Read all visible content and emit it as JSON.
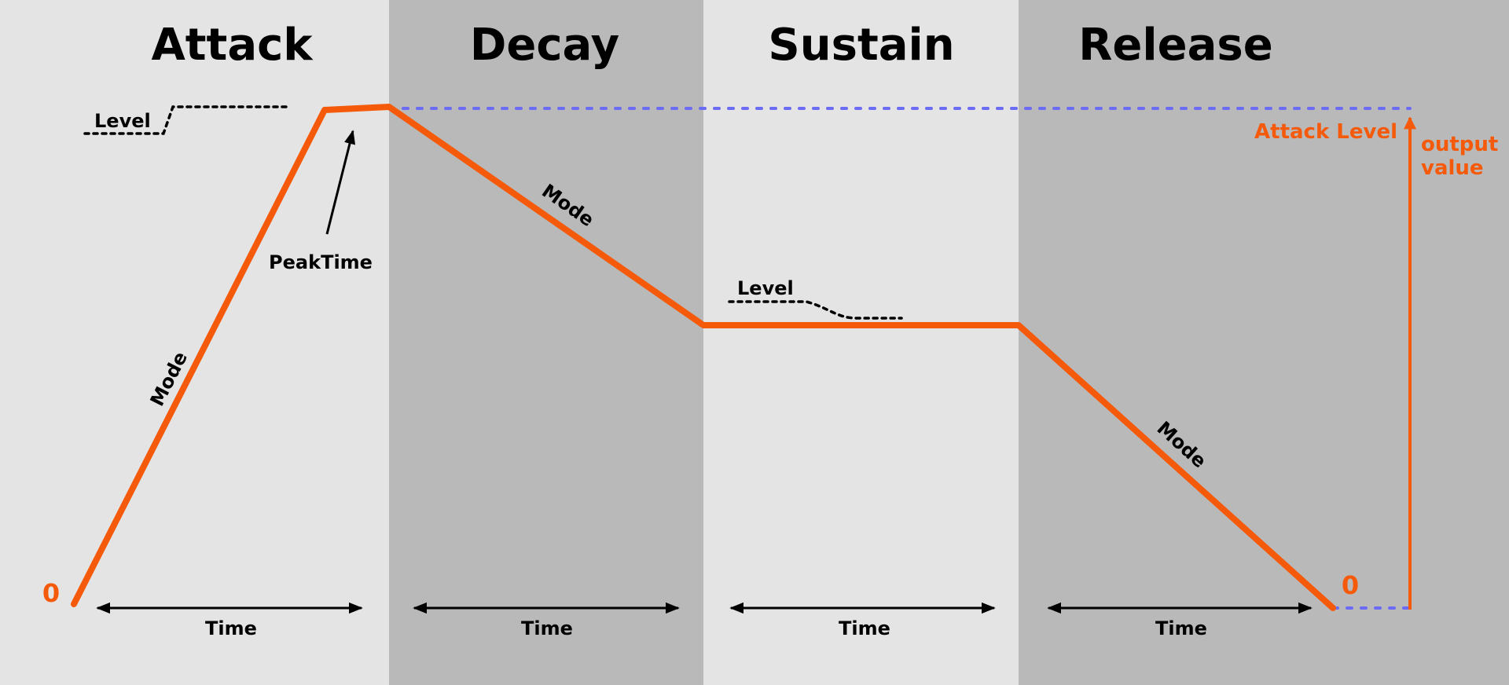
{
  "colors": {
    "light_band": "#e4e4e4",
    "dark_band": "#b9b9b9",
    "envelope": "#f55a0a",
    "reference": "#6b6bf5"
  },
  "stages": [
    {
      "title": "Attack",
      "time_label": "Time",
      "mode_label": "Mode",
      "level_label": "Level"
    },
    {
      "title": "Decay",
      "time_label": "Time",
      "mode_label": "Mode"
    },
    {
      "title": "Sustain",
      "time_label": "Time",
      "level_label": "Level"
    },
    {
      "title": "Release",
      "time_label": "Time",
      "mode_label": "Mode"
    }
  ],
  "peak_time_label": "PeakTime",
  "zero_label_start": "0",
  "zero_label_end": "0",
  "attack_level_label": "Attack Level",
  "output_value_label": [
    "output",
    "value"
  ]
}
